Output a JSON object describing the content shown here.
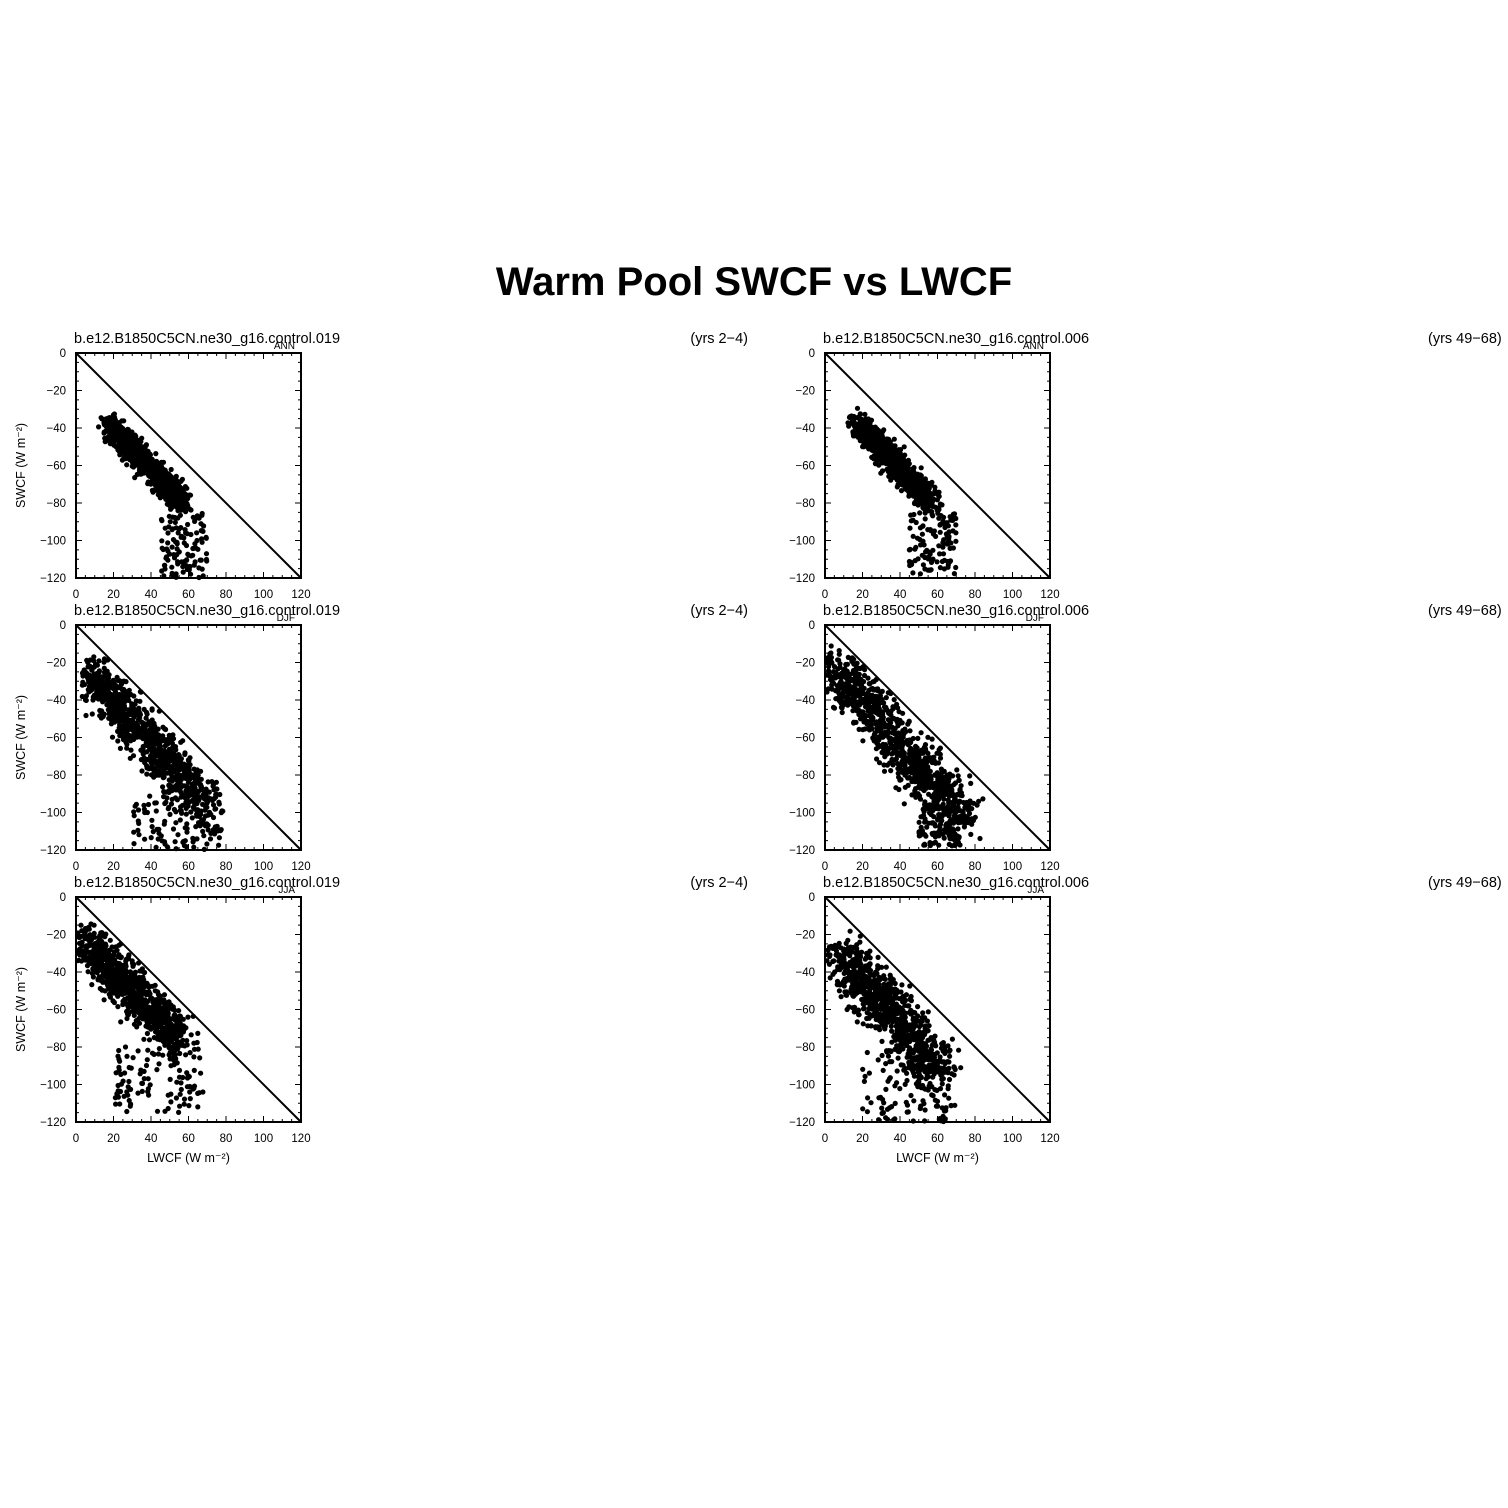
{
  "title": "Warm Pool SWCF vs LWCF",
  "axes": {
    "xlabel": "LWCF (W m⁻²)",
    "ylabel": "SWCF (W m⁻²)",
    "xticks": [
      "0",
      "20",
      "40",
      "60",
      "80",
      "100",
      "120"
    ],
    "yticks": [
      "0",
      "-20",
      "-40",
      "-60",
      "-80",
      "-100",
      "-120"
    ]
  },
  "chart_data": [
    {
      "type": "scatter",
      "case": "b.e12.B1850C5CN.ne30_g16.control.019",
      "season": "ANN",
      "years": "(yrs 2-4)",
      "xlim": [
        0,
        120
      ],
      "ylim": [
        -120,
        0
      ],
      "reference_line": "1:1",
      "cloud": {
        "x_start": 18,
        "y_start": -38,
        "x_end": 57,
        "y_end": -80,
        "spread": 3,
        "tail_x": [
          45,
          70
        ],
        "tail_y": [
          -85,
          -120
        ]
      }
    },
    {
      "type": "scatter",
      "case": "b.e12.B1850C5CN.ne30_g16.control.006",
      "season": "ANN",
      "years": "(yrs 49-68)",
      "xlim": [
        0,
        120
      ],
      "ylim": [
        -120,
        0
      ],
      "reference_line": "1:1",
      "cloud": {
        "x_start": 17,
        "y_start": -37,
        "x_end": 57,
        "y_end": -80,
        "spread": 3,
        "tail_x": [
          45,
          70
        ],
        "tail_y": [
          -85,
          -118
        ]
      }
    },
    {
      "type": "scatter",
      "case": "b.e12.B1850C5CN.ne30_g16.control.019",
      "season": "DJF",
      "years": "(yrs 2-4)",
      "xlim": [
        0,
        120
      ],
      "ylim": [
        -120,
        0
      ],
      "reference_line": "1:1",
      "cloud": {
        "x_start": 7,
        "y_start": -25,
        "x_end": 70,
        "y_end": -97,
        "spread": 5,
        "tail_x": [
          30,
          78
        ],
        "tail_y": [
          -90,
          -120
        ]
      }
    },
    {
      "type": "scatter",
      "case": "b.e12.B1850C5CN.ne30_g16.control.006",
      "season": "DJF",
      "years": "(yrs 49-68)",
      "xlim": [
        0,
        120
      ],
      "ylim": [
        -120,
        0
      ],
      "reference_line": "1:1",
      "cloud": {
        "x_start": 5,
        "y_start": -22,
        "x_end": 75,
        "y_end": -105,
        "spread": 6,
        "tail_x": [
          50,
          72
        ],
        "tail_y": [
          -95,
          -118
        ]
      }
    },
    {
      "type": "scatter",
      "case": "b.e12.B1850C5CN.ne30_g16.control.019",
      "season": "JJA",
      "years": "(yrs 2-4)",
      "xlim": [
        0,
        120
      ],
      "ylim": [
        -120,
        0
      ],
      "reference_line": "1:1",
      "cloud": {
        "x_start": 6,
        "y_start": -25,
        "x_end": 55,
        "y_end": -75,
        "spread": 5,
        "tail_x": [
          20,
          68
        ],
        "tail_y": [
          -80,
          -115
        ]
      }
    },
    {
      "type": "scatter",
      "case": "b.e12.B1850C5CN.ne30_g16.control.006",
      "season": "JJA",
      "years": "(yrs 49-68)",
      "xlim": [
        0,
        120
      ],
      "ylim": [
        -120,
        0
      ],
      "reference_line": "1:1",
      "cloud": {
        "x_start": 9,
        "y_start": -30,
        "x_end": 60,
        "y_end": -92,
        "spread": 6,
        "tail_x": [
          20,
          70
        ],
        "tail_y": [
          -80,
          -120
        ]
      }
    }
  ]
}
